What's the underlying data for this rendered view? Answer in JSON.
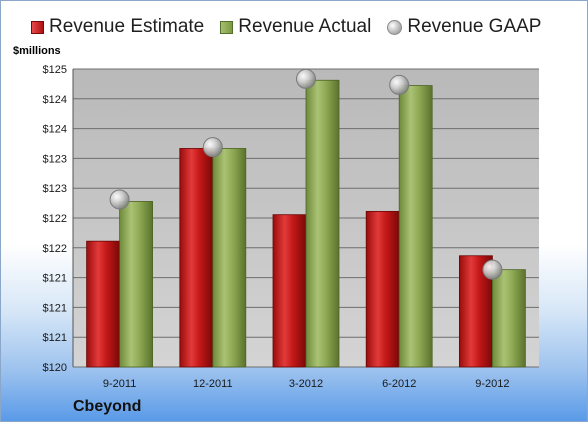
{
  "legend": [
    {
      "label": "Revenue Estimate",
      "icon": "red-square"
    },
    {
      "label": "Revenue Actual",
      "icon": "green-square"
    },
    {
      "label": "Revenue GAAP",
      "icon": "gray-ball"
    }
  ],
  "unit_label": "$millions",
  "company": "Cbeyond",
  "colors": {
    "estimate": "#c41818",
    "actual": "#8faa55",
    "gaap": "#b8b8b8",
    "plot_bg": "#c0c0c0"
  },
  "chart_data": {
    "type": "bar",
    "categories": [
      "9-2011",
      "12-2011",
      "3-2012",
      "6-2012",
      "9-2012"
    ],
    "series": [
      {
        "name": "Revenue Estimate",
        "kind": "bar",
        "values": [
          121.9,
          123.3,
          122.3,
          122.35,
          121.68
        ]
      },
      {
        "name": "Revenue Actual",
        "kind": "bar",
        "values": [
          122.5,
          123.3,
          124.33,
          124.25,
          121.47
        ]
      },
      {
        "name": "Revenue GAAP",
        "kind": "marker",
        "values": [
          122.53,
          123.32,
          124.35,
          124.26,
          121.47
        ]
      }
    ],
    "yticks": [
      "$125",
      "$124",
      "$124",
      "$123",
      "$123",
      "$122",
      "$122",
      "$121",
      "$121",
      "$121",
      "$120"
    ],
    "ylim": [
      120,
      124.5
    ],
    "grid": true,
    "legend_position": "top"
  }
}
